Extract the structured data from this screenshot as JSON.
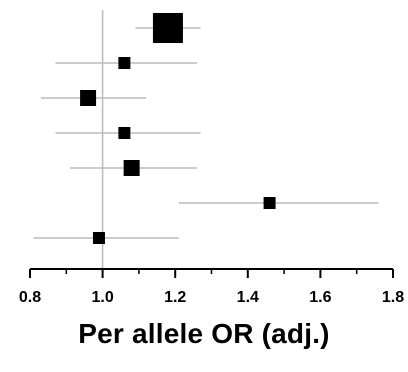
{
  "chart_data": {
    "type": "forest",
    "xlabel": "Per allele OR (adj.)",
    "xlim": [
      0.8,
      1.8
    ],
    "xticks": [
      "0.8",
      "1.0",
      "1.2",
      "1.4",
      "1.6",
      "1.8"
    ],
    "reference_line": 1.0,
    "grid": false,
    "points": [
      {
        "or": 1.18,
        "ci_low": 1.09,
        "ci_high": 1.27,
        "weight": "large"
      },
      {
        "or": 1.06,
        "ci_low": 0.87,
        "ci_high": 1.26,
        "weight": "small"
      },
      {
        "or": 0.96,
        "ci_low": 0.83,
        "ci_high": 1.12,
        "weight": "medium"
      },
      {
        "or": 1.06,
        "ci_low": 0.87,
        "ci_high": 1.27,
        "weight": "small"
      },
      {
        "or": 1.08,
        "ci_low": 0.91,
        "ci_high": 1.26,
        "weight": "medium"
      },
      {
        "or": 1.46,
        "ci_low": 1.21,
        "ci_high": 1.76,
        "weight": "small"
      },
      {
        "or": 0.99,
        "ci_low": 0.81,
        "ci_high": 1.21,
        "weight": "small"
      }
    ],
    "colors": {
      "marker": "#000000",
      "ci_line": "#bbbbbb",
      "reference_line": "#bbbbbb",
      "axis": "#000000"
    }
  }
}
